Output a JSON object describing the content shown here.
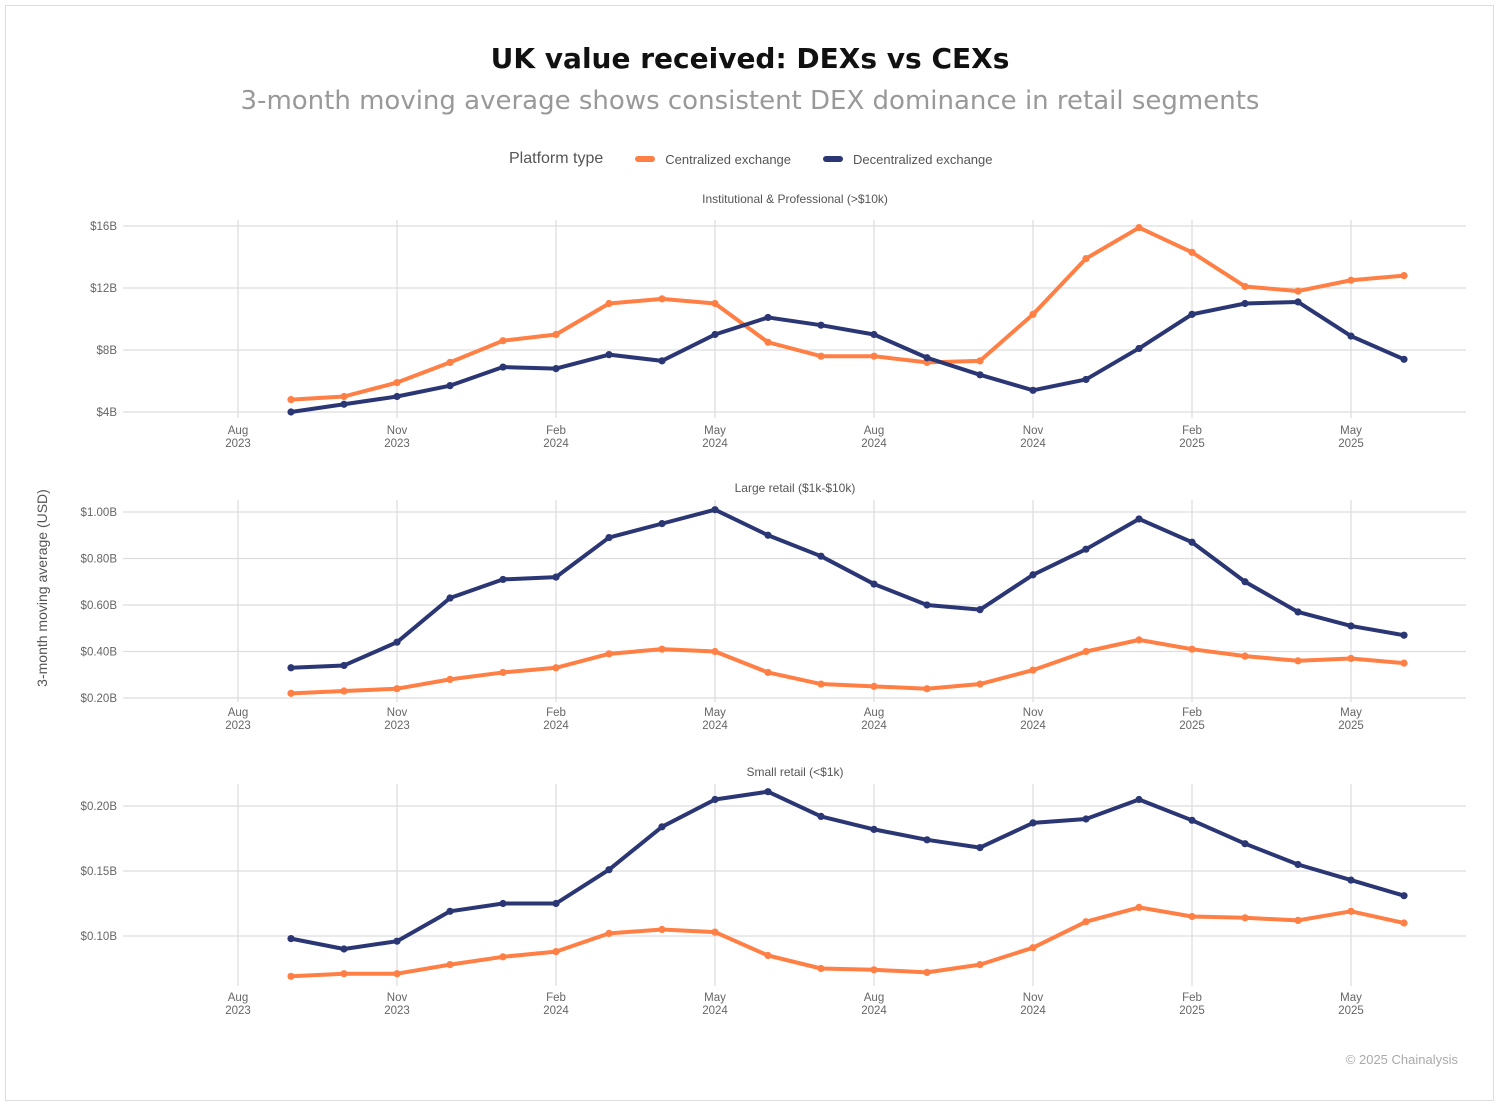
{
  "header": {
    "title": "UK value received: DEXs vs CEXs",
    "subtitle": "3-month moving average shows consistent DEX dominance in retail segments"
  },
  "credit": "© 2025 Chainalysis",
  "colors": {
    "cex": "#FF7F45",
    "dex": "#2B3674",
    "grid": "#dddddd"
  },
  "chart_data": {
    "type": "line",
    "legend": {
      "title": "Platform type",
      "position": "top",
      "entries": [
        "Centralized exchange",
        "Decentralized exchange"
      ]
    },
    "ylabel": "3-month moving average (USD)",
    "x": [
      "2023-09",
      "2023-10",
      "2023-11",
      "2023-12",
      "2024-01",
      "2024-02",
      "2024-03",
      "2024-04",
      "2024-05",
      "2024-06",
      "2024-07",
      "2024-08",
      "2024-09",
      "2024-10",
      "2024-11",
      "2024-12",
      "2025-01",
      "2025-02",
      "2025-03",
      "2025-04",
      "2025-05",
      "2025-06"
    ],
    "x_ticks": [
      {
        "month": "Aug",
        "year": "2023"
      },
      {
        "month": "Nov",
        "year": "2023"
      },
      {
        "month": "Feb",
        "year": "2024"
      },
      {
        "month": "May",
        "year": "2024"
      },
      {
        "month": "Aug",
        "year": "2024"
      },
      {
        "month": "Nov",
        "year": "2024"
      },
      {
        "month": "Feb",
        "year": "2025"
      },
      {
        "month": "May",
        "year": "2025"
      }
    ],
    "grid": true,
    "panels": [
      {
        "title": "Institutional & Professional (>$10k)",
        "unit": "USD billions",
        "y_ticks": [
          {
            "v": 4,
            "label": "$4B"
          },
          {
            "v": 8,
            "label": "$8B"
          },
          {
            "v": 12,
            "label": "$12B"
          },
          {
            "v": 16,
            "label": "$16B"
          }
        ],
        "series": [
          {
            "name": "Centralized exchange",
            "values": [
              4.8,
              5.0,
              5.9,
              7.2,
              8.6,
              9.0,
              11.0,
              11.3,
              11.0,
              8.5,
              7.6,
              7.6,
              7.2,
              7.3,
              10.3,
              13.9,
              15.9,
              14.3,
              12.1,
              11.8,
              12.5,
              12.8
            ]
          },
          {
            "name": "Decentralized exchange",
            "values": [
              4.0,
              4.5,
              5.0,
              5.7,
              6.9,
              6.8,
              7.7,
              7.3,
              9.0,
              10.1,
              9.6,
              9.0,
              7.5,
              6.4,
              5.4,
              6.1,
              8.1,
              10.3,
              11.0,
              11.1,
              8.9,
              7.4
            ]
          }
        ]
      },
      {
        "title": "Large retail ($1k-$10k)",
        "unit": "USD billions",
        "y_ticks": [
          {
            "v": 0.2,
            "label": "$0.20B"
          },
          {
            "v": 0.4,
            "label": "$0.40B"
          },
          {
            "v": 0.6,
            "label": "$0.60B"
          },
          {
            "v": 0.8,
            "label": "$0.80B"
          },
          {
            "v": 1.0,
            "label": "$1.00B"
          }
        ],
        "series": [
          {
            "name": "Centralized exchange",
            "values": [
              0.22,
              0.23,
              0.24,
              0.28,
              0.31,
              0.33,
              0.39,
              0.41,
              0.4,
              0.31,
              0.26,
              0.25,
              0.24,
              0.26,
              0.32,
              0.4,
              0.45,
              0.41,
              0.38,
              0.36,
              0.37,
              0.35
            ]
          },
          {
            "name": "Decentralized exchange",
            "values": [
              0.33,
              0.34,
              0.44,
              0.63,
              0.71,
              0.72,
              0.89,
              0.95,
              1.01,
              0.9,
              0.81,
              0.69,
              0.6,
              0.58,
              0.73,
              0.84,
              0.97,
              0.87,
              0.7,
              0.57,
              0.51,
              0.47
            ]
          }
        ]
      },
      {
        "title": "Small retail (<$1k)",
        "unit": "USD billions",
        "y_ticks": [
          {
            "v": 0.1,
            "label": "$0.10B"
          },
          {
            "v": 0.15,
            "label": "$0.15B"
          },
          {
            "v": 0.2,
            "label": "$0.20B"
          }
        ],
        "series": [
          {
            "name": "Centralized exchange",
            "values": [
              0.069,
              0.071,
              0.071,
              0.078,
              0.084,
              0.088,
              0.102,
              0.105,
              0.103,
              0.085,
              0.075,
              0.074,
              0.072,
              0.078,
              0.091,
              0.111,
              0.122,
              0.115,
              0.114,
              0.112,
              0.119,
              0.11
            ]
          },
          {
            "name": "Decentralized exchange",
            "values": [
              0.098,
              0.09,
              0.096,
              0.119,
              0.125,
              0.125,
              0.151,
              0.184,
              0.205,
              0.211,
              0.192,
              0.182,
              0.174,
              0.168,
              0.187,
              0.19,
              0.205,
              0.189,
              0.171,
              0.155,
              0.143,
              0.131
            ]
          }
        ]
      }
    ]
  }
}
